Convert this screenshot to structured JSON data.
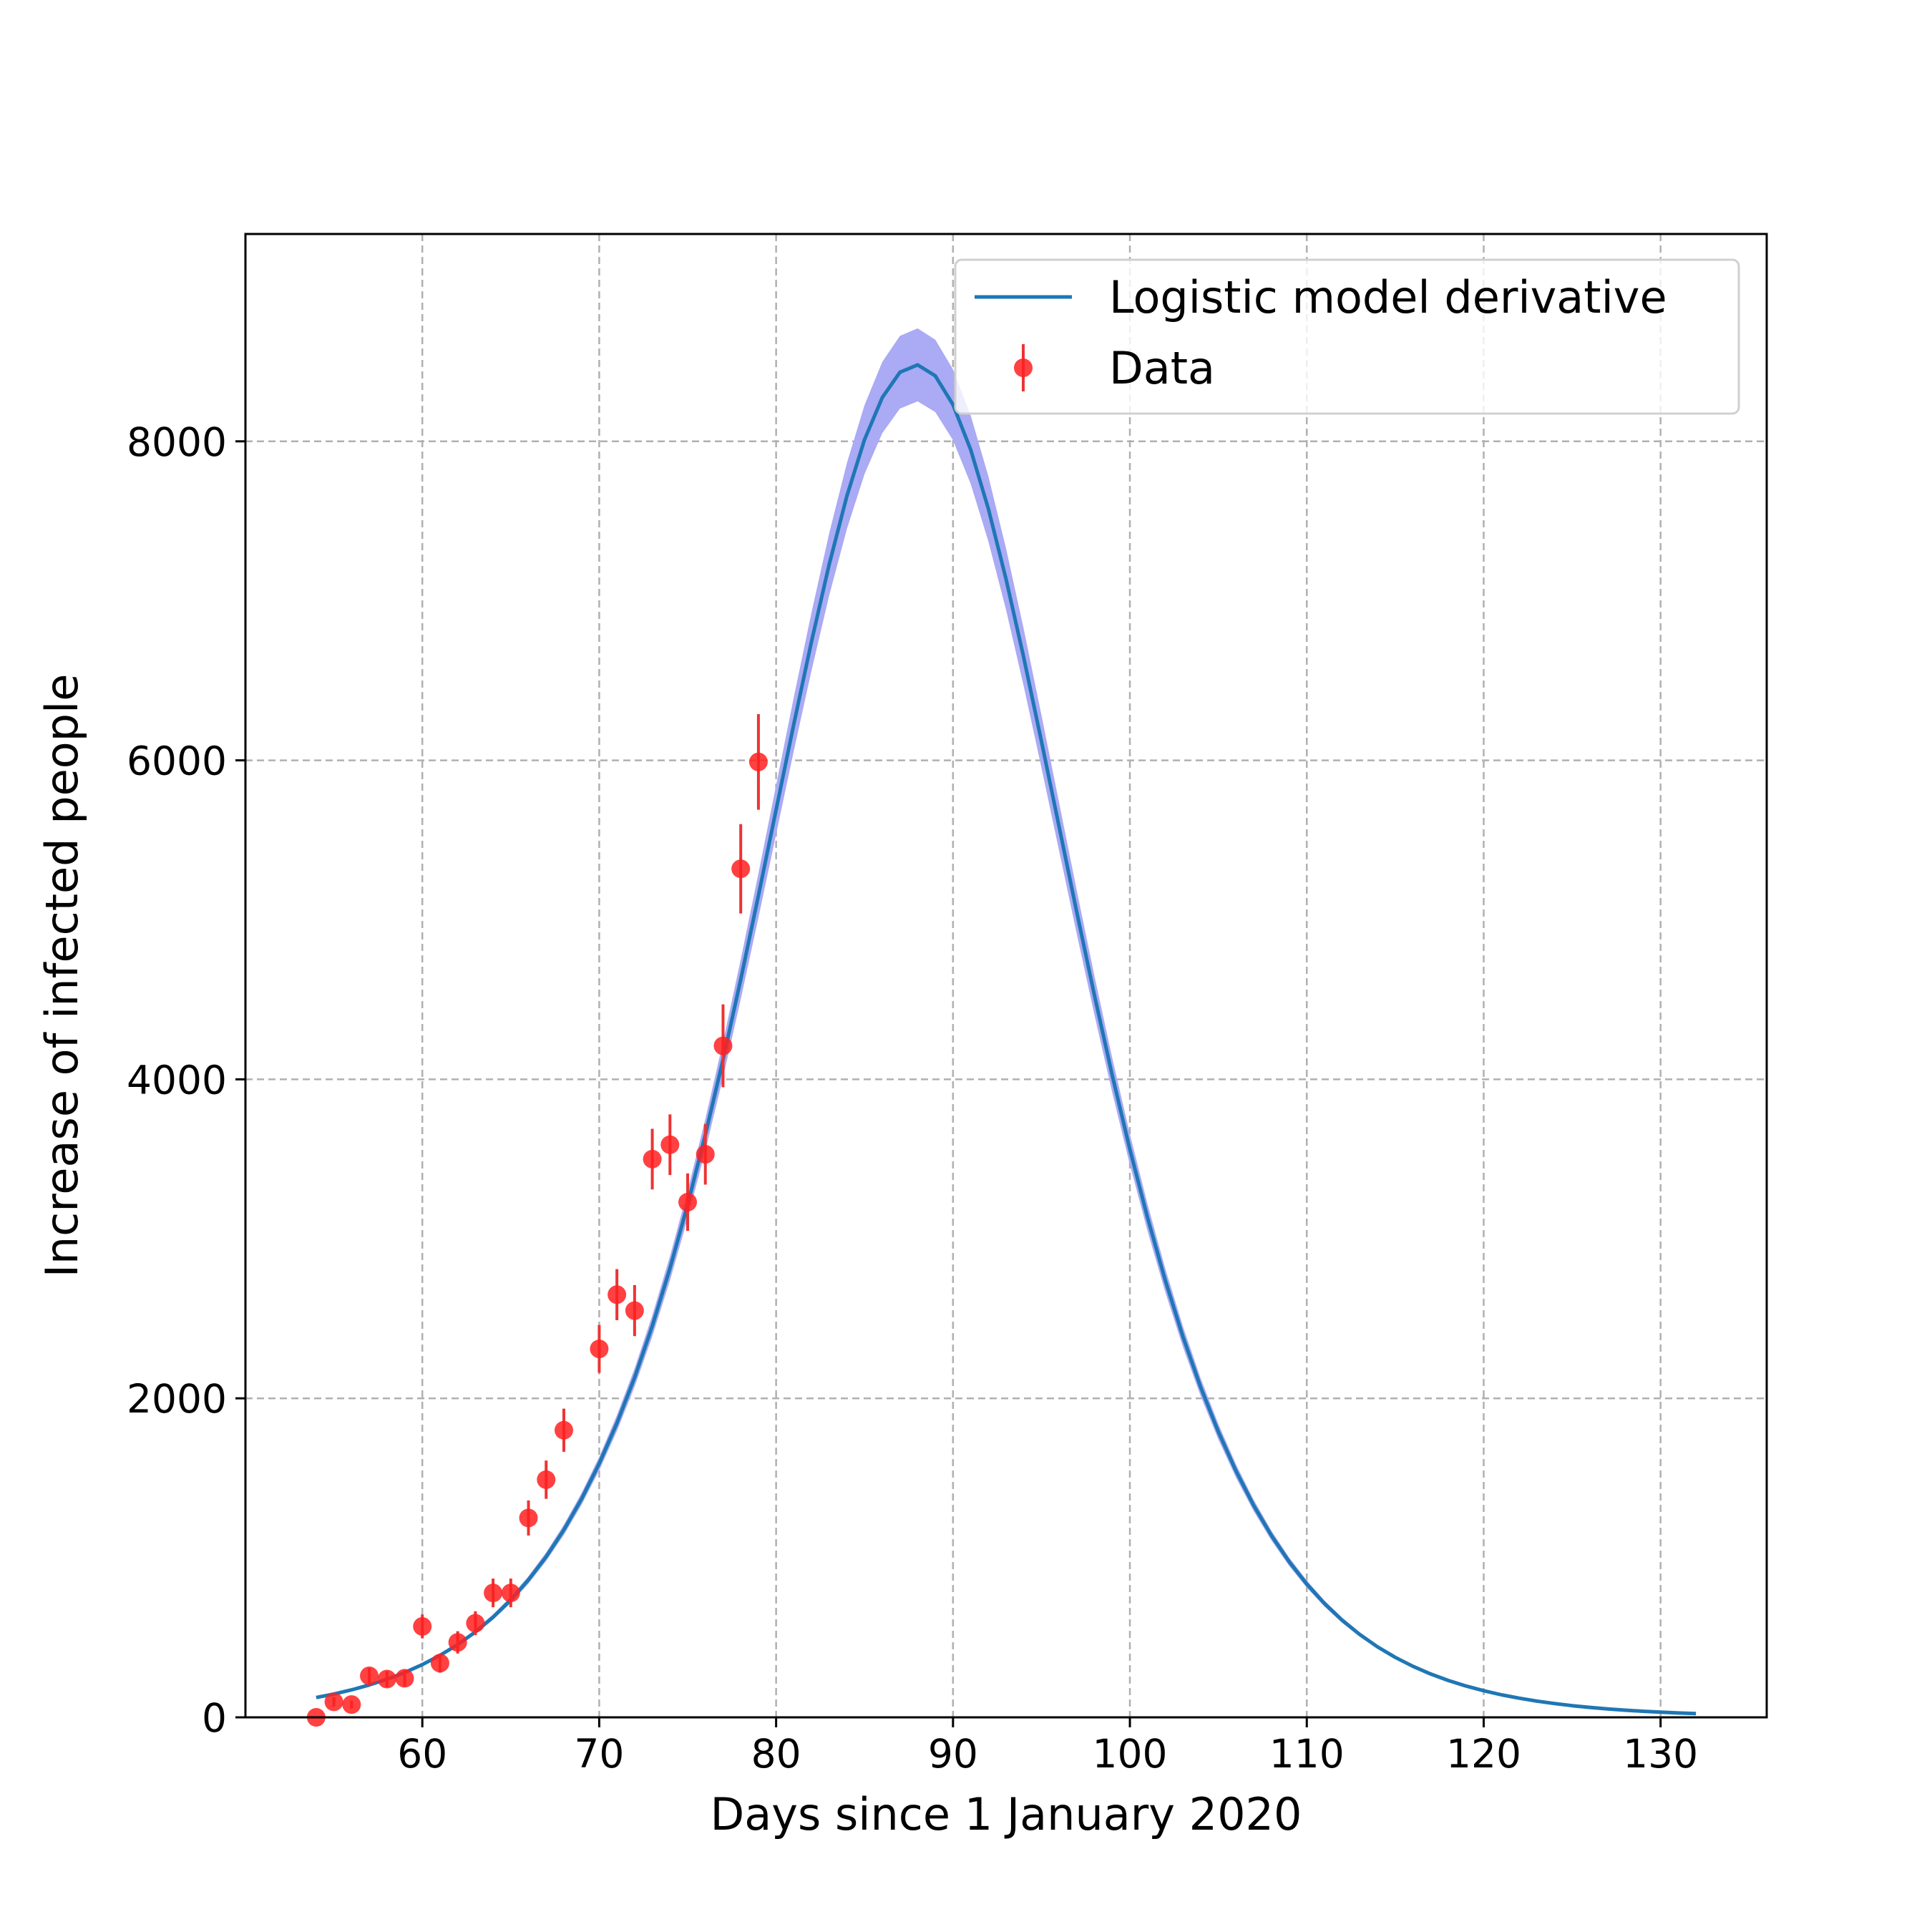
{
  "chart_data": {
    "type": "line",
    "xlabel": "Days since 1 January 2020",
    "ylabel": "Increase of infected people",
    "xlim": [
      50,
      136
    ],
    "ylim": [
      0,
      9300
    ],
    "x_ticks": [
      60,
      70,
      80,
      90,
      100,
      110,
      120,
      130
    ],
    "y_ticks": [
      0,
      2000,
      4000,
      6000,
      8000
    ],
    "grid": true,
    "legend": "top-right",
    "colors": {
      "model": "#1f77b4",
      "band": "#aaaaf5",
      "data": "#ff2020",
      "error": "#ee3333"
    },
    "model": {
      "name": "Logistic model derivative",
      "x_start": 54,
      "x_end": 132,
      "peak_x": 87.9,
      "peak_y": 8480,
      "scale": 6.05,
      "band_fraction": 0.027
    },
    "data_series": {
      "name": "Data",
      "x": [
        54,
        55,
        56,
        57,
        58,
        59,
        60,
        61,
        62,
        63,
        64,
        65,
        66,
        67,
        68,
        70,
        71,
        72,
        73,
        74,
        75,
        76,
        77,
        78,
        79
      ],
      "y": [
        0,
        97,
        80,
        260,
        240,
        245,
        570,
        340,
        470,
        590,
        780,
        780,
        1250,
        1490,
        1800,
        2310,
        2650,
        2550,
        3500,
        3590,
        3230,
        3530,
        4210,
        5320,
        5990
      ],
      "yerr": [
        0,
        30,
        25,
        50,
        50,
        50,
        75,
        60,
        70,
        75,
        90,
        90,
        110,
        120,
        135,
        150,
        160,
        160,
        190,
        190,
        180,
        190,
        260,
        280,
        300
      ]
    }
  }
}
